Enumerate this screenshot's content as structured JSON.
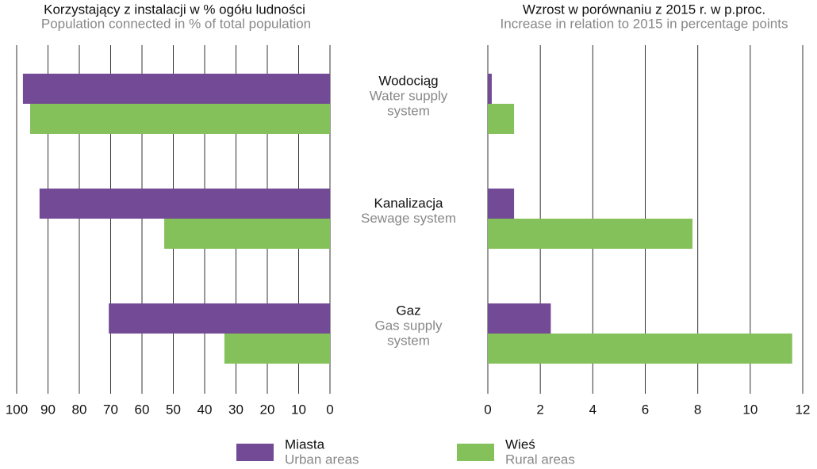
{
  "chart_data": [
    {
      "type": "bar",
      "orientation": "horizontal",
      "reversed": true,
      "title": "Korzystający z instalacji w % ogółu ludności",
      "subtitle": "Population connected in % of total population",
      "categories": [
        "Wodociąg",
        "Kanalizacja",
        "Gaz"
      ],
      "categories_en": [
        [
          "Water supply",
          "system"
        ],
        [
          "Sewage system"
        ],
        [
          "Gas supply",
          "system"
        ]
      ],
      "series": [
        {
          "name": "Miasta",
          "name_en": "Urban areas",
          "color": "#734a96",
          "values": [
            98.0,
            92.7,
            70.6
          ]
        },
        {
          "name": "Wieś",
          "name_en": "Rural areas",
          "color": "#85c15a",
          "values": [
            95.7,
            52.9,
            33.7
          ]
        }
      ],
      "xlim": [
        0,
        100
      ],
      "xticks": [
        100,
        90,
        80,
        70,
        60,
        50,
        40,
        30,
        20,
        10,
        0
      ],
      "grid": true
    },
    {
      "type": "bar",
      "orientation": "horizontal",
      "title": "Wzrost w porównaniu z 2015 r. w p.proc.",
      "subtitle": "Increase in relation to 2015 in percentage points",
      "series": [
        {
          "color": "#734a96",
          "values": [
            0.15,
            1.0,
            2.4
          ]
        },
        {
          "color": "#85c15a",
          "values": [
            1.0,
            7.8,
            11.6
          ]
        }
      ],
      "xlim": [
        0,
        12
      ],
      "xticks": [
        0,
        2,
        4,
        6,
        8,
        10,
        12
      ],
      "grid": true
    }
  ]
}
